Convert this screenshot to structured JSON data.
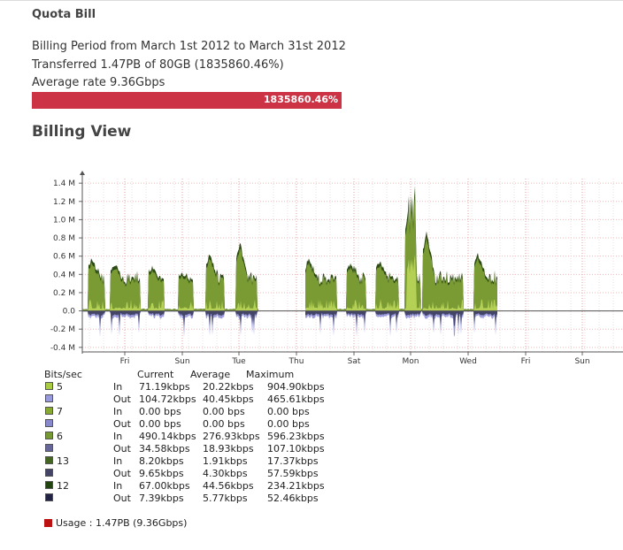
{
  "header": {
    "title": "Quota Bill"
  },
  "billing": {
    "period": "Billing Period from March 1st 2012 to March 31st 2012",
    "transferred": "Transferred 1.47PB of 80GB (1835860.46%)",
    "average_rate": "Average rate 9.36Gbps",
    "usage_bar_label": "1835860.46%",
    "usage_bar_color": "#cc3344"
  },
  "section": {
    "title": "Billing View"
  },
  "chart_data": {
    "type": "area",
    "y_tick_labels": [
      "1.4 M",
      "1.2 M",
      "1.0 M",
      "0.8 M",
      "0.6 M",
      "0.4 M",
      "0.2 M",
      "0.0",
      "-0.2 M",
      "-0.4 M"
    ],
    "x_tick_labels": [
      "Fri",
      "Sun",
      "Tue",
      "Thu",
      "Sat",
      "Mon",
      "Wed",
      "Fri",
      "Sun"
    ],
    "ylim": [
      -450000,
      1450000
    ],
    "grid": true,
    "series": [
      {
        "name": "5 In",
        "color": "#aacc44"
      },
      {
        "name": "5 Out",
        "color": "#9999dd"
      },
      {
        "name": "6 In",
        "color": "#779933"
      },
      {
        "name": "6 Out",
        "color": "#666699"
      },
      {
        "name": "13 In",
        "color": "#446622"
      },
      {
        "name": "12 In",
        "color": "#224411"
      }
    ]
  },
  "legend": {
    "headers": {
      "unit": "Bits/sec",
      "current": "Current",
      "average": "Average",
      "maximum": "Maximum"
    },
    "rows": [
      {
        "port": "5",
        "dir": "In",
        "current": "71.19kbps",
        "average": "20.22kbps",
        "maximum": "904.90kbps",
        "color": "#aacc44"
      },
      {
        "port": "",
        "dir": "Out",
        "current": "104.72kbps",
        "average": "40.45kbps",
        "maximum": "465.61kbps",
        "color": "#9999dd"
      },
      {
        "port": "7",
        "dir": "In",
        "current": "0.00 bps",
        "average": "0.00 bps",
        "maximum": "0.00 bps",
        "color": "#88aa33"
      },
      {
        "port": "",
        "dir": "Out",
        "current": "0.00 bps",
        "average": "0.00 bps",
        "maximum": "0.00 bps",
        "color": "#8888cc"
      },
      {
        "port": "6",
        "dir": "In",
        "current": "490.14kbps",
        "average": "276.93kbps",
        "maximum": "596.23kbps",
        "color": "#779933"
      },
      {
        "port": "",
        "dir": "Out",
        "current": "34.58kbps",
        "average": "18.93kbps",
        "maximum": "107.10kbps",
        "color": "#666699"
      },
      {
        "port": "13",
        "dir": "In",
        "current": "8.20kbps",
        "average": "1.91kbps",
        "maximum": "17.37kbps",
        "color": "#446622"
      },
      {
        "port": "",
        "dir": "Out",
        "current": "9.65kbps",
        "average": "4.30kbps",
        "maximum": "57.59kbps",
        "color": "#444466"
      },
      {
        "port": "12",
        "dir": "In",
        "current": "67.00kbps",
        "average": "44.56kbps",
        "maximum": "234.21kbps",
        "color": "#224411"
      },
      {
        "port": "",
        "dir": "Out",
        "current": "7.39kbps",
        "average": "5.77kbps",
        "maximum": "52.46kbps",
        "color": "#222244"
      }
    ],
    "usage": {
      "label": "Usage : 1.47PB (9.36Gbps)",
      "color": "#bb1111"
    }
  }
}
